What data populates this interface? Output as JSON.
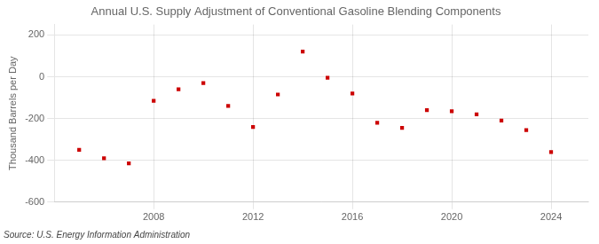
{
  "chart_data": {
    "type": "scatter",
    "title": "Annual U.S. Supply Adjustment of Conventional Gasoline Blending Components",
    "ylabel": "Thousand Barrels per Day",
    "source": "Source: U.S. Energy Information Administration",
    "x": [
      2005,
      2006,
      2007,
      2008,
      2009,
      2010,
      2011,
      2012,
      2013,
      2014,
      2015,
      2016,
      2017,
      2018,
      2019,
      2020,
      2021,
      2022,
      2023,
      2024
    ],
    "values": [
      -350,
      -390,
      -415,
      -115,
      -60,
      -30,
      -140,
      -240,
      -85,
      120,
      -5,
      -80,
      -220,
      -245,
      -160,
      -165,
      -180,
      -210,
      -255,
      -360
    ],
    "color": "#cc0000",
    "marker": "square",
    "xlim": [
      2004.0,
      2025.5
    ],
    "xticks": [
      2008,
      2012,
      2016,
      2020,
      2024
    ],
    "ylim": [
      -600,
      250
    ],
    "yticks": [
      -600,
      -400,
      -200,
      0,
      200
    ],
    "grid": true
  }
}
